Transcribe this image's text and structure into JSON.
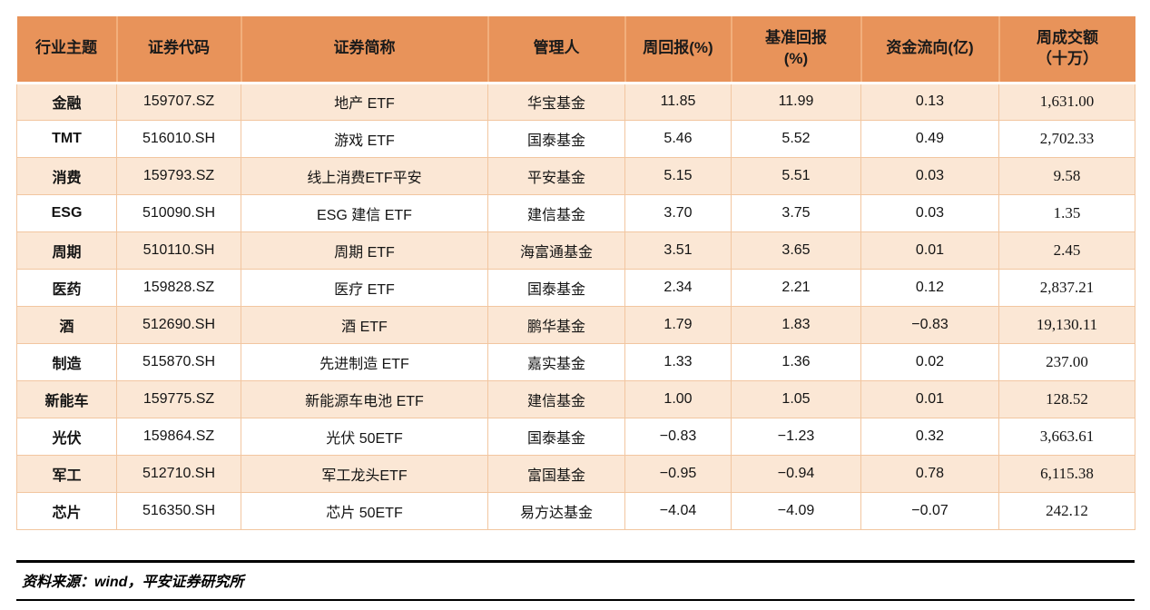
{
  "colors": {
    "header_bg": "#E8935A",
    "header_divider": "#F2AF7C",
    "row_alt_bg": "#FBE7D5",
    "row_bg": "#FFFFFF",
    "cell_border": "#F2C6A0",
    "text": "#141414",
    "footer_line": "#000000"
  },
  "chart_data": {
    "type": "table",
    "title": "",
    "columns": [
      "行业主题",
      "证券代码",
      "证券简称",
      "管理人",
      "周回报(%)",
      "基准回报(%)",
      "资金流向(亿)",
      "周成交额（十万）"
    ]
  },
  "table": {
    "columns": [
      {
        "key": "theme",
        "label": "行业主题",
        "bold": true
      },
      {
        "key": "code",
        "label": "证券代码"
      },
      {
        "key": "name",
        "label": "证券简称"
      },
      {
        "key": "manager",
        "label": "管理人"
      },
      {
        "key": "week_return",
        "label": "周回报(%)"
      },
      {
        "key": "benchmark_return",
        "label": "基准回报\n(%)"
      },
      {
        "key": "flow",
        "label": "资金流向(亿)"
      },
      {
        "key": "volume",
        "label": "周成交额\n（十万）",
        "serif": true
      }
    ],
    "rows": [
      {
        "theme": "金融",
        "code": "159707.SZ",
        "name": "地产 ETF",
        "manager": "华宝基金",
        "week_return": "11.85",
        "benchmark_return": "11.99",
        "flow": "0.13",
        "volume": "1,631.00"
      },
      {
        "theme": "TMT",
        "code": "516010.SH",
        "name": "游戏 ETF",
        "manager": "国泰基金",
        "week_return": "5.46",
        "benchmark_return": "5.52",
        "flow": "0.49",
        "volume": "2,702.33"
      },
      {
        "theme": "消费",
        "code": "159793.SZ",
        "name": "线上消费ETF平安",
        "manager": "平安基金",
        "week_return": "5.15",
        "benchmark_return": "5.51",
        "flow": "0.03",
        "volume": "9.58"
      },
      {
        "theme": "ESG",
        "code": "510090.SH",
        "name": "ESG 建信 ETF",
        "manager": "建信基金",
        "week_return": "3.70",
        "benchmark_return": "3.75",
        "flow": "0.03",
        "volume": "1.35"
      },
      {
        "theme": "周期",
        "code": "510110.SH",
        "name": "周期 ETF",
        "manager": "海富通基金",
        "week_return": "3.51",
        "benchmark_return": "3.65",
        "flow": "0.01",
        "volume": "2.45"
      },
      {
        "theme": "医药",
        "code": "159828.SZ",
        "name": "医疗 ETF",
        "manager": "国泰基金",
        "week_return": "2.34",
        "benchmark_return": "2.21",
        "flow": "0.12",
        "volume": "2,837.21"
      },
      {
        "theme": "酒",
        "code": "512690.SH",
        "name": "酒 ETF",
        "manager": "鹏华基金",
        "week_return": "1.79",
        "benchmark_return": "1.83",
        "flow": "−0.83",
        "volume": "19,130.11"
      },
      {
        "theme": "制造",
        "code": "515870.SH",
        "name": "先进制造 ETF",
        "manager": "嘉实基金",
        "week_return": "1.33",
        "benchmark_return": "1.36",
        "flow": "0.02",
        "volume": "237.00"
      },
      {
        "theme": "新能车",
        "code": "159775.SZ",
        "name": "新能源车电池 ETF",
        "manager": "建信基金",
        "week_return": "1.00",
        "benchmark_return": "1.05",
        "flow": "0.01",
        "volume": "128.52"
      },
      {
        "theme": "光伏",
        "code": "159864.SZ",
        "name": "光伏 50ETF",
        "manager": "国泰基金",
        "week_return": "−0.83",
        "benchmark_return": "−1.23",
        "flow": "0.32",
        "volume": "3,663.61"
      },
      {
        "theme": "军工",
        "code": "512710.SH",
        "name": "军工龙头ETF",
        "manager": "富国基金",
        "week_return": "−0.95",
        "benchmark_return": "−0.94",
        "flow": "0.78",
        "volume": "6,115.38"
      },
      {
        "theme": "芯片",
        "code": "516350.SH",
        "name": "芯片 50ETF",
        "manager": "易方达基金",
        "week_return": "−4.04",
        "benchmark_return": "−4.09",
        "flow": "−0.07",
        "volume": "242.12"
      }
    ]
  },
  "footer": {
    "source_note": "资料来源：wind，平安证券研究所"
  }
}
